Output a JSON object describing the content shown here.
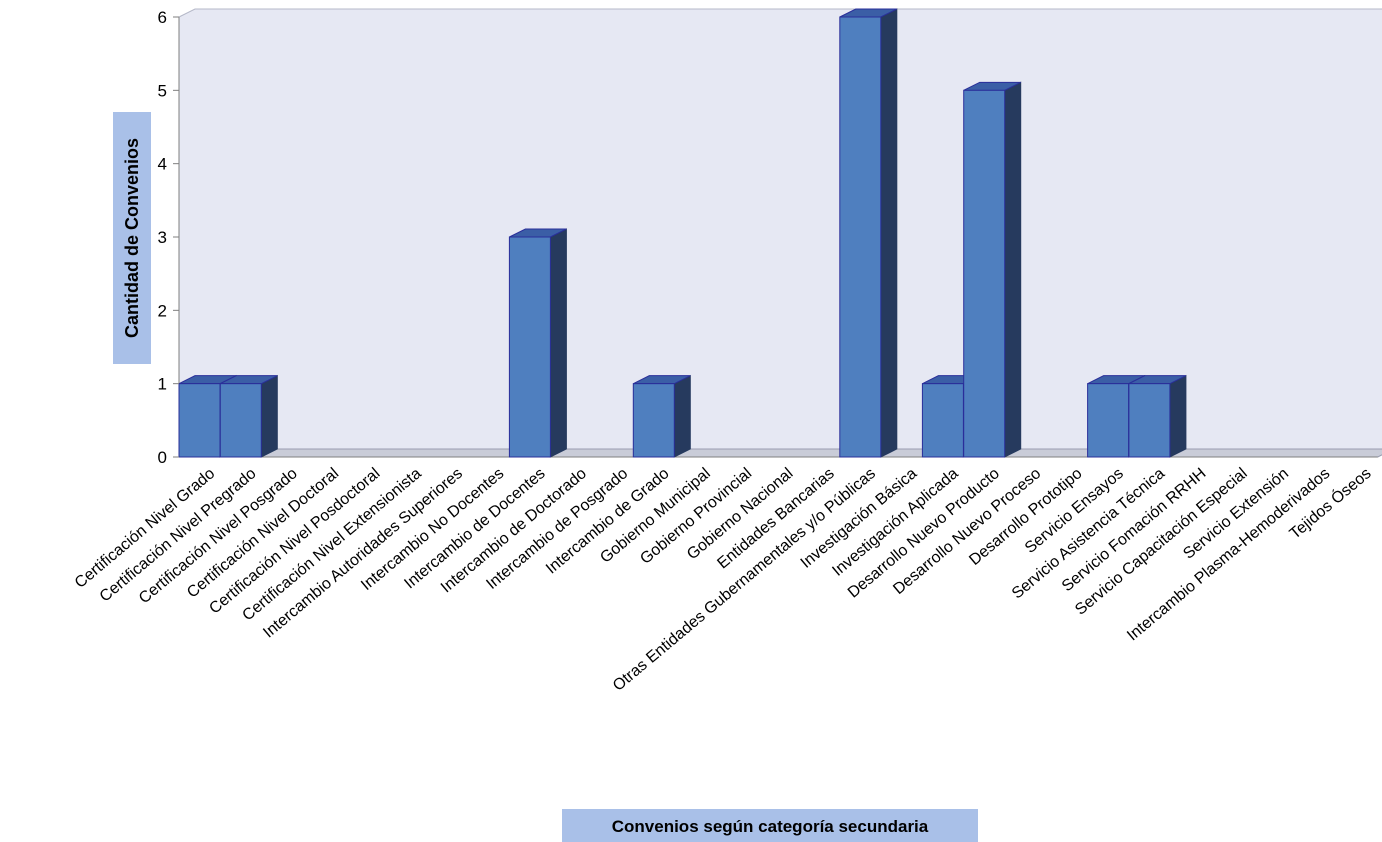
{
  "colors": {
    "plot_background": "#e6e8f3",
    "floor": "#c9ccd8",
    "bar_front": "#4f7fbf",
    "bar_top": "#3b5ea6",
    "bar_side": "#263a5e",
    "bar_stroke": "#2a2f9a",
    "label_box": "#a9c0e8"
  },
  "chart_data": {
    "type": "bar",
    "three_d": true,
    "xlabel": "Convenios según categoría secundaria",
    "ylabel": "Cantidad de Convenios",
    "ylim": [
      0,
      6
    ],
    "yticks": [
      0,
      1,
      2,
      3,
      4,
      5,
      6
    ],
    "grid": false,
    "categories": [
      "Certificación Nivel Grado",
      "Certificación Nivel Pregrado",
      "Certificación Nivel Posgrado",
      "Certificación Nivel Doctoral",
      "Certificación Nivel Posdoctoral",
      "Certificación Nivel Extensionista",
      "Intercambio Autoridades Superiores",
      "Intercambio No Docentes",
      "Intercambio de Docentes",
      "Intercambio de Doctorado",
      "Intercambio de Posgrado",
      "Intercambio de Grado",
      "Gobierno Municipal",
      "Gobierno Provincial",
      "Gobierno Nacional",
      "Entidades Bancarias",
      "Otras Entidades Gubernamentales y/o Públicas",
      "Investigación Básica",
      "Investigación Aplicada",
      "Desarrollo Nuevo Producto",
      "Desarrollo Nuevo Proceso",
      "Desarrollo Prototipo",
      "Servicio Ensayos",
      "Servicio Asistencia Técnica",
      "Servicio Fomación RRHH",
      "Servicio Capacitación Especial",
      "Servicio Extensión",
      "Intercambio Plasma-Hemoderivados",
      "Tejidos Óseos"
    ],
    "values": [
      1,
      1,
      0,
      0,
      0,
      0,
      0,
      0,
      3,
      0,
      0,
      1,
      0,
      0,
      0,
      0,
      6,
      0,
      1,
      5,
      0,
      0,
      1,
      1,
      0,
      0,
      0,
      0,
      0
    ]
  }
}
